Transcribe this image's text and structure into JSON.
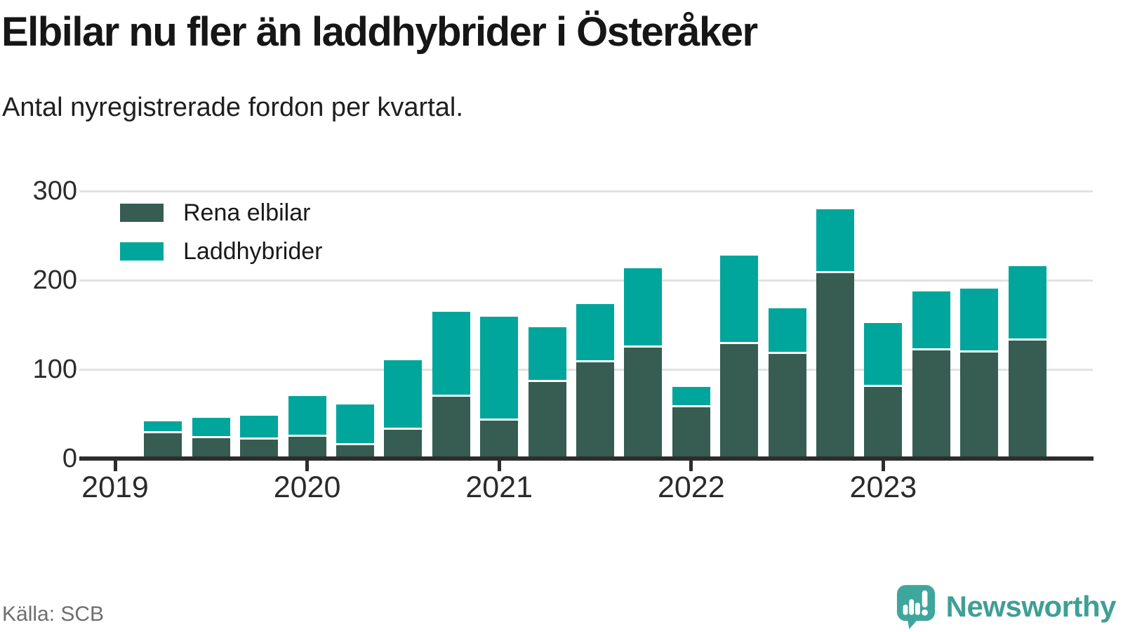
{
  "header": {
    "title": "Elbilar nu fler än laddhybrider i Österåker",
    "subtitle": "Antal nyregistrerade fordon per kvartal."
  },
  "footer": {
    "source": "Källa: SCB",
    "brand": "Newsworthy",
    "brand_color": "#3f9f96",
    "logo_color": "#3ea69d"
  },
  "chart_data": {
    "type": "bar",
    "stacked": true,
    "title": "Elbilar nu fler än laddhybrider i Österåker",
    "subtitle": "Antal nyregistrerade fordon per kvartal.",
    "source": "Källa: SCB",
    "categories": [
      "2019 K2",
      "2019 K3",
      "2019 K4",
      "2020 K1",
      "2020 K2",
      "2020 K3",
      "2020 K4",
      "2021 K1",
      "2021 K2",
      "2021 K3",
      "2021 K4",
      "2022 K1",
      "2022 K2",
      "2022 K3",
      "2022 K4",
      "2023 K1",
      "2023 K2",
      "2023 K3",
      "2023 K4"
    ],
    "series": [
      {
        "name": "Rena elbilar",
        "color": "#375c52",
        "values": [
          27,
          22,
          20,
          23,
          14,
          31,
          68,
          41,
          85,
          107,
          123,
          56,
          127,
          116,
          207,
          79,
          120,
          118,
          131
        ]
      },
      {
        "name": "Laddhybrider",
        "color": "#00a69b",
        "values": [
          12,
          21,
          26,
          45,
          44,
          77,
          94,
          116,
          60,
          64,
          88,
          22,
          98,
          50,
          70,
          71,
          65,
          70,
          82
        ]
      }
    ],
    "xlabel": "",
    "ylabel": "",
    "ylim": [
      0,
      300
    ],
    "yticks": [
      0,
      100,
      200,
      300
    ],
    "xticks": [
      "2019",
      "2020",
      "2021",
      "2022",
      "2023"
    ],
    "grid": "horizontal",
    "gridline_color": "#e2e2e2",
    "axis_color": "#2d2d2d",
    "legend_position": "top-left-inside",
    "separator_color": "#ffffff"
  }
}
